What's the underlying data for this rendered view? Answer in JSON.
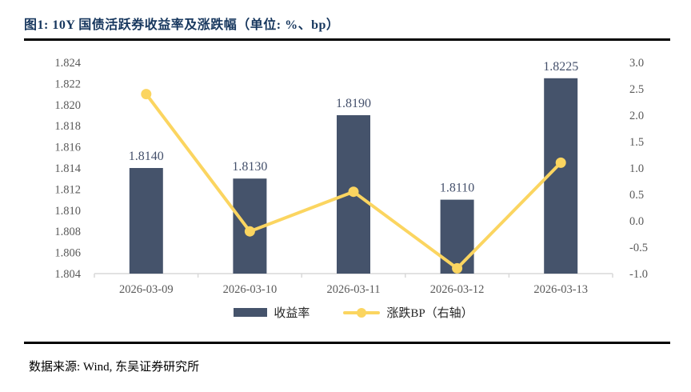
{
  "figure": {
    "title": "图1: 10Y 国债活跃券收益率及涨跌幅（单位: %、bp）",
    "source": "数据来源: Wind, 东吴证券研究所"
  },
  "chart_data": {
    "type": "combo_bar_line",
    "title": "10Y 国债活跃券收益率及涨跌幅（单位: %、bp）",
    "categories": [
      "2026-03-09",
      "2026-03-10",
      "2026-03-11",
      "2026-03-12",
      "2026-03-13"
    ],
    "series": [
      {
        "name": "收益率",
        "type": "bar",
        "axis": "left",
        "values": [
          1.814,
          1.813,
          1.819,
          1.811,
          1.8225
        ],
        "labels": [
          "1.8140",
          "1.8130",
          "1.8190",
          "1.8110",
          "1.8225"
        ],
        "color": "#45536B"
      },
      {
        "name": "涨跌BP（右轴）",
        "type": "line",
        "axis": "right",
        "values": [
          2.4,
          -0.2,
          0.55,
          -0.9,
          1.1
        ],
        "color": "#FBD560"
      }
    ],
    "left_axis": {
      "min": 1.804,
      "max": 1.824,
      "step": 0.002,
      "ticks": [
        "1.824",
        "1.822",
        "1.820",
        "1.818",
        "1.816",
        "1.814",
        "1.812",
        "1.810",
        "1.808",
        "1.806",
        "1.804"
      ]
    },
    "right_axis": {
      "min": -1.0,
      "max": 3.0,
      "step": 0.5,
      "ticks": [
        "3.0",
        "2.5",
        "2.0",
        "1.5",
        "1.0",
        "0.5",
        "0.0",
        "-0.5",
        "-1.0"
      ]
    },
    "grid": false,
    "legend_position": "bottom",
    "colors": {
      "axis_line": "#D9D9D9",
      "tick_label": "#595959",
      "bar_value_label": "#44506B",
      "title": "#17375E"
    }
  }
}
